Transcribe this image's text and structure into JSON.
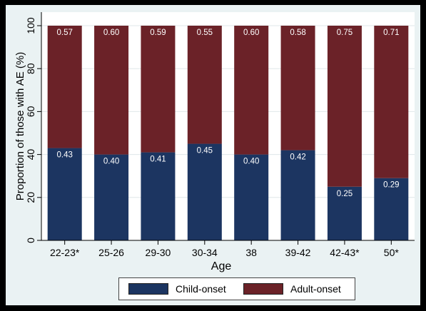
{
  "chart_data": {
    "type": "bar",
    "stacked": true,
    "categories": [
      "22-23*",
      "25-26",
      "29-30",
      "30-34",
      "38",
      "39-42",
      "42-43*",
      "50*"
    ],
    "series": [
      {
        "name": "Child-onset",
        "color": "#1c3561",
        "values": [
          0.43,
          0.4,
          0.41,
          0.45,
          0.4,
          0.42,
          0.25,
          0.29
        ],
        "labels": [
          "0.43",
          "0.40",
          "0.41",
          "0.45",
          "0.40",
          "0.42",
          "0.25",
          "0.29"
        ]
      },
      {
        "name": "Adult-onset",
        "color": "#6b2228",
        "values": [
          0.57,
          0.6,
          0.59,
          0.55,
          0.6,
          0.58,
          0.75,
          0.71
        ],
        "labels": [
          "0.57",
          "0.60",
          "0.59",
          "0.55",
          "0.60",
          "0.58",
          "0.75",
          "0.71"
        ]
      }
    ],
    "xlabel": "Age",
    "ylabel": "Proportion of those with AE (%)",
    "ylim": [
      0,
      100
    ],
    "yticks": [
      0,
      20,
      40,
      60,
      80,
      100
    ],
    "ytick_labels": [
      "0",
      "20",
      "40",
      "60",
      "80",
      "100"
    ],
    "grid": true,
    "legend": "bottom"
  }
}
